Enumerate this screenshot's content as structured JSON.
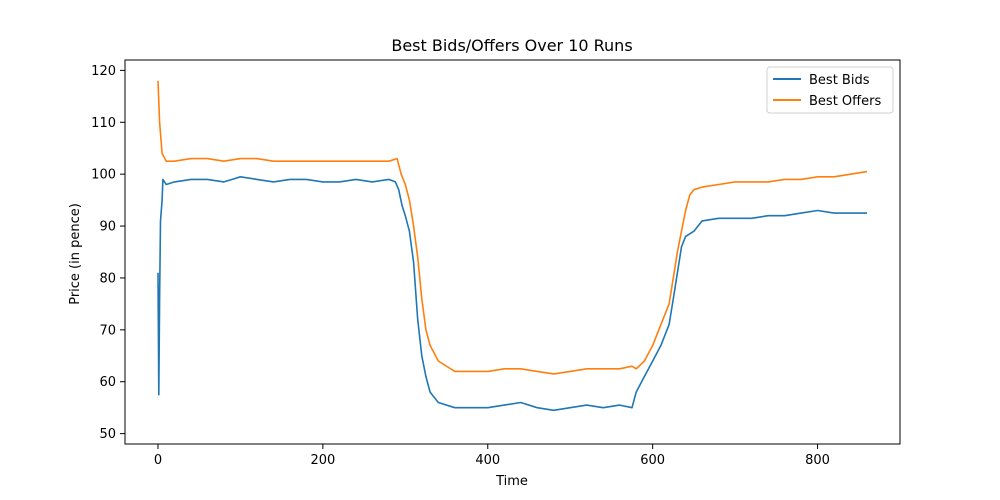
{
  "chart_data": {
    "type": "line",
    "title": "Best Bids/Offers Over 10 Runs",
    "xlabel": "Time",
    "ylabel": "Price (in pence)",
    "xlim": [
      -40,
      900
    ],
    "ylim": [
      48,
      122
    ],
    "xticks": [
      0,
      200,
      400,
      600,
      800
    ],
    "yticks": [
      50,
      60,
      70,
      80,
      90,
      100,
      110,
      120
    ],
    "grid": false,
    "legend": "top-right",
    "series": [
      {
        "name": "Best Bids",
        "color": "#1f77b4",
        "points": [
          [
            0,
            81
          ],
          [
            1,
            57.5
          ],
          [
            2,
            76
          ],
          [
            3,
            91
          ],
          [
            5,
            95
          ],
          [
            6,
            99
          ],
          [
            10,
            98
          ],
          [
            20,
            98.5
          ],
          [
            40,
            99
          ],
          [
            60,
            99
          ],
          [
            80,
            98.5
          ],
          [
            90,
            99
          ],
          [
            100,
            99.5
          ],
          [
            120,
            99
          ],
          [
            140,
            98.5
          ],
          [
            160,
            99
          ],
          [
            180,
            99
          ],
          [
            200,
            98.5
          ],
          [
            220,
            98.5
          ],
          [
            240,
            99
          ],
          [
            260,
            98.5
          ],
          [
            280,
            99
          ],
          [
            288,
            98.5
          ],
          [
            292,
            97
          ],
          [
            296,
            94
          ],
          [
            300,
            92
          ],
          [
            305,
            89
          ],
          [
            310,
            83
          ],
          [
            315,
            72
          ],
          [
            320,
            65
          ],
          [
            325,
            61
          ],
          [
            330,
            58
          ],
          [
            340,
            56
          ],
          [
            360,
            55
          ],
          [
            380,
            55
          ],
          [
            400,
            55
          ],
          [
            420,
            55.5
          ],
          [
            440,
            56
          ],
          [
            460,
            55
          ],
          [
            480,
            54.5
          ],
          [
            500,
            55
          ],
          [
            520,
            55.5
          ],
          [
            540,
            55
          ],
          [
            560,
            55.5
          ],
          [
            575,
            55
          ],
          [
            580,
            58
          ],
          [
            590,
            61
          ],
          [
            600,
            64
          ],
          [
            610,
            67
          ],
          [
            620,
            71
          ],
          [
            625,
            76
          ],
          [
            630,
            81
          ],
          [
            635,
            86
          ],
          [
            640,
            88
          ],
          [
            650,
            89
          ],
          [
            660,
            91
          ],
          [
            680,
            91.5
          ],
          [
            700,
            91.5
          ],
          [
            720,
            91.5
          ],
          [
            740,
            92
          ],
          [
            760,
            92
          ],
          [
            780,
            92.5
          ],
          [
            800,
            93
          ],
          [
            820,
            92.5
          ],
          [
            840,
            92.5
          ],
          [
            860,
            92.5
          ]
        ]
      },
      {
        "name": "Best Offers",
        "color": "#ff7f0e",
        "points": [
          [
            0,
            118
          ],
          [
            2,
            110
          ],
          [
            5,
            104
          ],
          [
            10,
            102.5
          ],
          [
            20,
            102.5
          ],
          [
            40,
            103
          ],
          [
            60,
            103
          ],
          [
            80,
            102.5
          ],
          [
            100,
            103
          ],
          [
            120,
            103
          ],
          [
            140,
            102.5
          ],
          [
            160,
            102.5
          ],
          [
            180,
            102.5
          ],
          [
            200,
            102.5
          ],
          [
            220,
            102.5
          ],
          [
            240,
            102.5
          ],
          [
            260,
            102.5
          ],
          [
            280,
            102.5
          ],
          [
            290,
            103
          ],
          [
            295,
            100
          ],
          [
            300,
            98
          ],
          [
            305,
            95
          ],
          [
            310,
            90
          ],
          [
            315,
            84
          ],
          [
            320,
            76
          ],
          [
            325,
            70
          ],
          [
            330,
            67
          ],
          [
            340,
            64
          ],
          [
            360,
            62
          ],
          [
            380,
            62
          ],
          [
            400,
            62
          ],
          [
            420,
            62.5
          ],
          [
            440,
            62.5
          ],
          [
            460,
            62
          ],
          [
            480,
            61.5
          ],
          [
            500,
            62
          ],
          [
            520,
            62.5
          ],
          [
            540,
            62.5
          ],
          [
            560,
            62.5
          ],
          [
            575,
            63
          ],
          [
            580,
            62.5
          ],
          [
            590,
            64
          ],
          [
            600,
            67
          ],
          [
            610,
            71
          ],
          [
            620,
            75
          ],
          [
            625,
            80
          ],
          [
            630,
            85
          ],
          [
            635,
            89
          ],
          [
            640,
            93
          ],
          [
            645,
            96
          ],
          [
            650,
            97
          ],
          [
            660,
            97.5
          ],
          [
            680,
            98
          ],
          [
            700,
            98.5
          ],
          [
            720,
            98.5
          ],
          [
            740,
            98.5
          ],
          [
            760,
            99
          ],
          [
            780,
            99
          ],
          [
            800,
            99.5
          ],
          [
            820,
            99.5
          ],
          [
            840,
            100
          ],
          [
            860,
            100.5
          ]
        ]
      }
    ]
  }
}
